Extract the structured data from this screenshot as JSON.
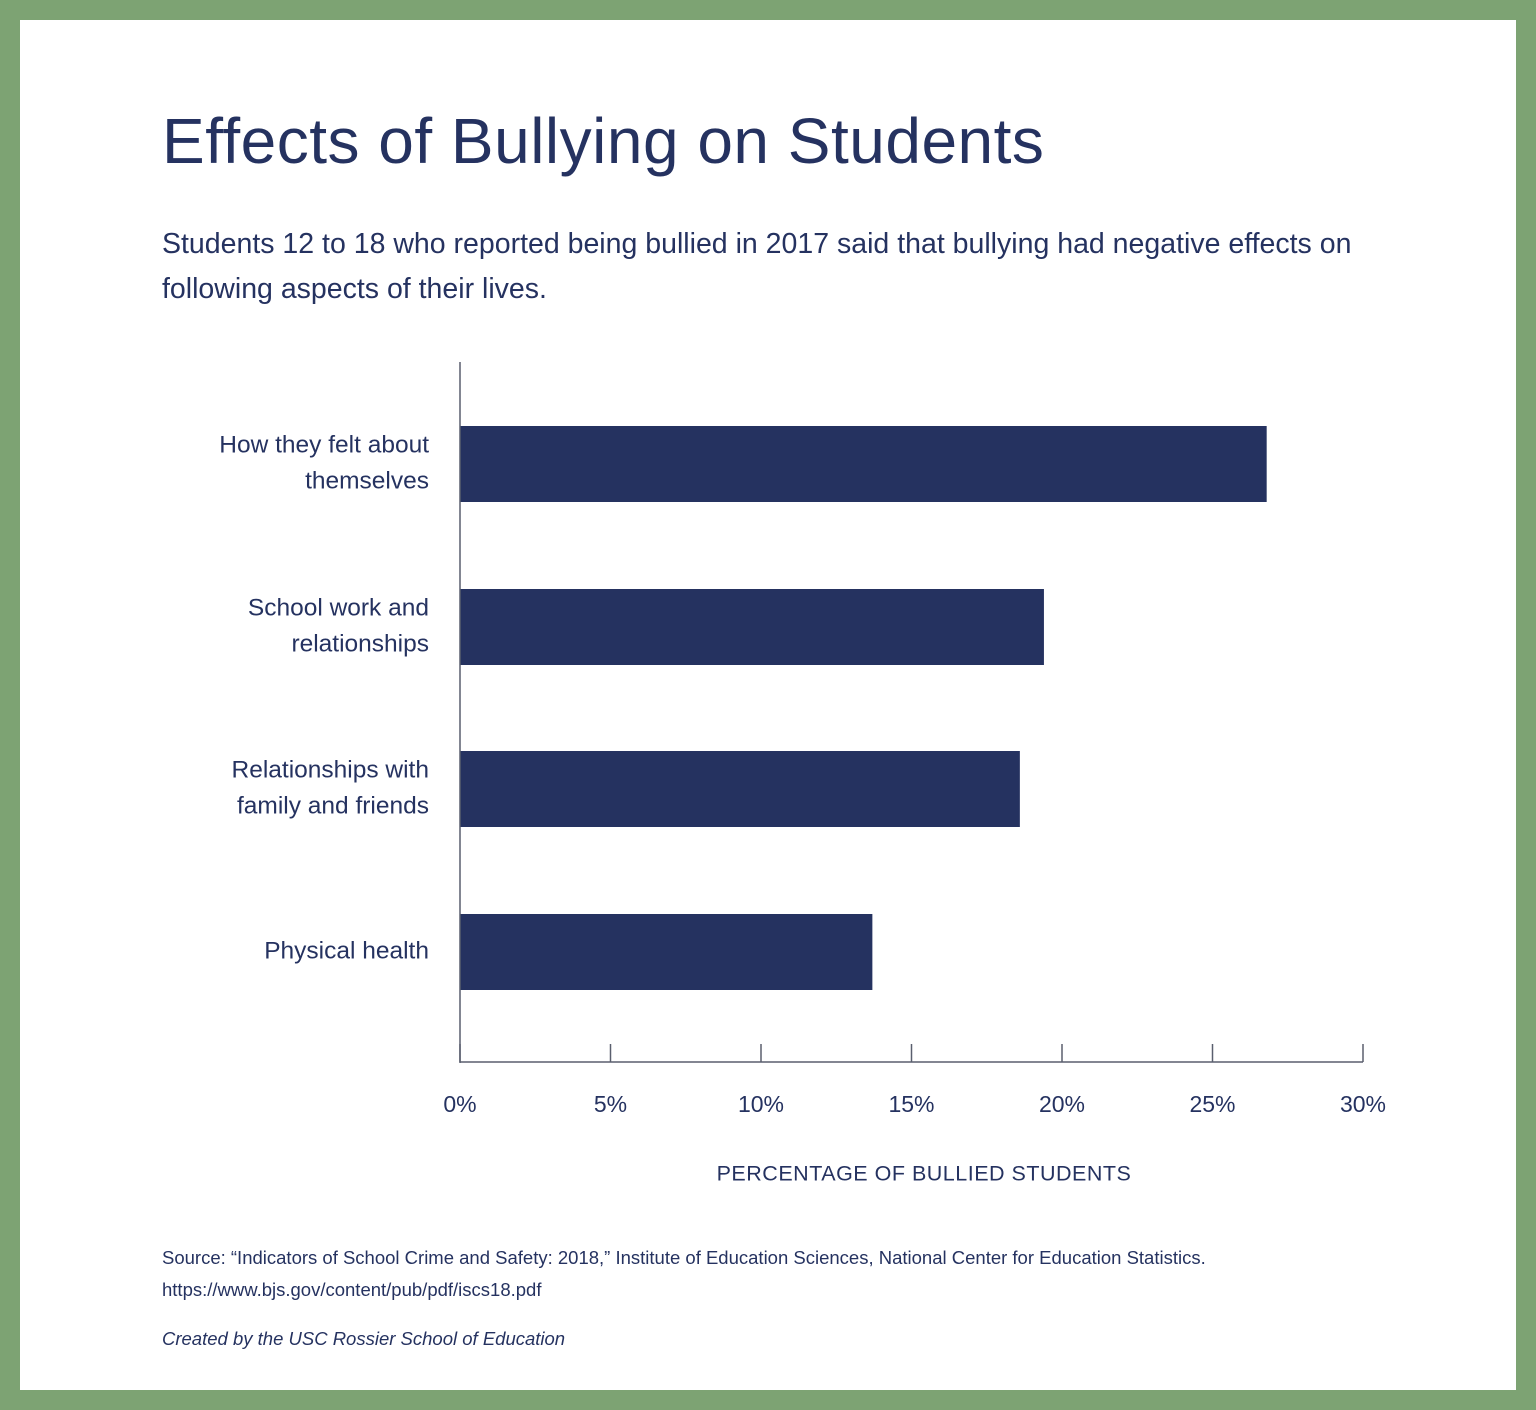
{
  "title": "Effects of Bullying on Students",
  "subtitle": "Students 12 to 18 who reported being bullied in 2017 said that bullying had negative effects on following aspects of their lives.",
  "colors": {
    "border": "#7da373",
    "background": "#ffffff",
    "bar": "#253260",
    "text": "#253260",
    "axis": "#5a5f6e"
  },
  "chart_data": {
    "type": "bar",
    "orientation": "horizontal",
    "categories": [
      [
        "How they felt about",
        "themselves"
      ],
      [
        "School work and",
        "relationships"
      ],
      [
        "Relationships with",
        "family and friends"
      ],
      [
        "Physical health"
      ]
    ],
    "values": [
      26.8,
      19.4,
      18.6,
      13.7
    ],
    "xlim": [
      0,
      30
    ],
    "xticks": [
      0,
      5,
      10,
      15,
      20,
      25,
      30
    ],
    "xtick_labels": [
      "0%",
      "5%",
      "10%",
      "15%",
      "20%",
      "25%",
      "30%"
    ],
    "xlabel": "PERCENTAGE OF BULLIED STUDENTS",
    "ylabel": "",
    "grid": false,
    "legend": "none"
  },
  "source": {
    "line1": "Source: “Indicators of School Crime and Safety: 2018,” Institute of Education Sciences, National Center for Education Statistics.",
    "line2": "https://www.bjs.gov/content/pub/pdf/iscs18.pdf"
  },
  "credit": "Created by the USC Rossier School of Education"
}
